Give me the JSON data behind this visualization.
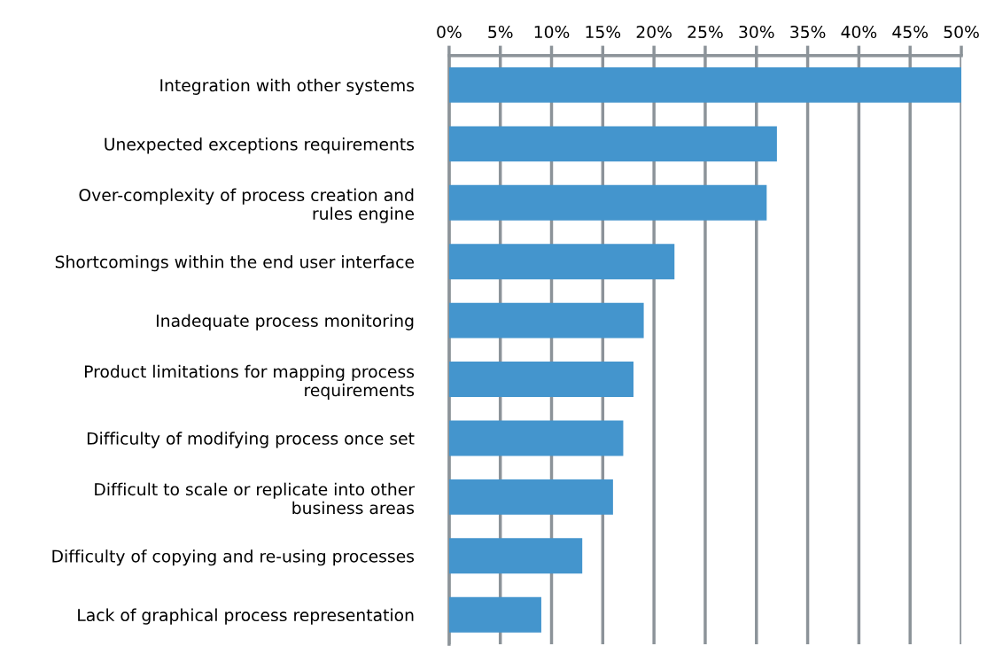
{
  "chart_data": {
    "type": "bar",
    "orientation": "horizontal",
    "categories": [
      "Integration with other systems",
      "Unexpected exceptions requirements",
      "Over-complexity of process creation and\nrules engine",
      "Shortcomings within the end user interface",
      "Inadequate process monitoring",
      "Product limitations for mapping process\nrequirements",
      "Difficulty of modifying process once set",
      "Difficult to scale or replicate into other\nbusiness areas",
      "Difficulty of copying and re-using processes",
      "Lack of graphical process representation"
    ],
    "values": [
      50,
      32,
      31,
      22,
      19,
      18,
      17,
      16,
      13,
      9
    ],
    "color": "#4495cd",
    "xlim": [
      0,
      50
    ],
    "xticks": [
      {
        "value": 0,
        "label": "0%"
      },
      {
        "value": 5,
        "label": "5%"
      },
      {
        "value": 10,
        "label": "10%"
      },
      {
        "value": 15,
        "label": "15%"
      },
      {
        "value": 20,
        "label": "20%"
      },
      {
        "value": 25,
        "label": "25%"
      },
      {
        "value": 30,
        "label": "30%"
      },
      {
        "value": 35,
        "label": "35%"
      },
      {
        "value": 40,
        "label": "40%"
      },
      {
        "value": 45,
        "label": "45%"
      },
      {
        "value": 50,
        "label": "50%"
      }
    ],
    "grid": "x"
  }
}
